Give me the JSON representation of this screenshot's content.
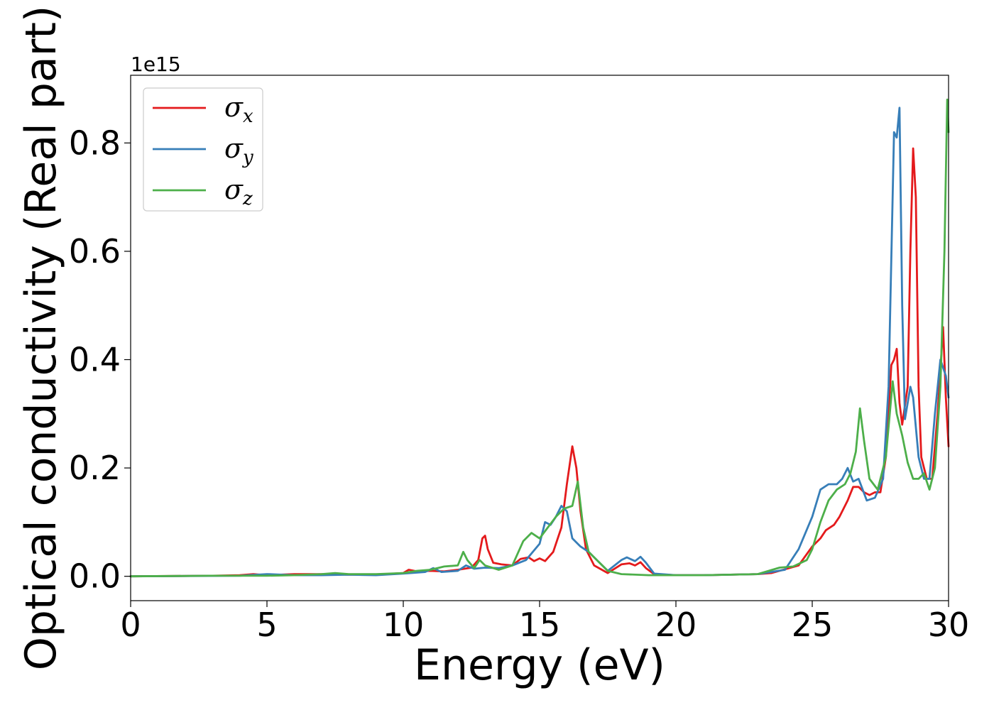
{
  "chart_data": {
    "type": "line",
    "xlabel": "Energy (eV)",
    "ylabel": "Optical conductivity (Real part)",
    "y_offset_text": "1e15",
    "xlim": [
      0,
      30
    ],
    "ylim": [
      -0.045,
      0.925
    ],
    "x_ticks": [
      0,
      5,
      10,
      15,
      20,
      25,
      30
    ],
    "x_tick_labels": [
      "0",
      "5",
      "10",
      "15",
      "20",
      "25",
      "30"
    ],
    "y_ticks": [
      0.0,
      0.2,
      0.4,
      0.6,
      0.8
    ],
    "y_tick_labels": [
      "0.0",
      "0.2",
      "0.4",
      "0.6",
      "0.8"
    ],
    "grid": false,
    "legend_position": "top-left",
    "series": [
      {
        "name": "σx",
        "symbol": "σ",
        "subscript": "x",
        "color": "#e41a1c",
        "points": [
          [
            0,
            0
          ],
          [
            3,
            0.001
          ],
          [
            4,
            0.002
          ],
          [
            4.5,
            0.004
          ],
          [
            5,
            0.002
          ],
          [
            6,
            0.004
          ],
          [
            7,
            0.004
          ],
          [
            8,
            0.003
          ],
          [
            9,
            0.003
          ],
          [
            10,
            0.006
          ],
          [
            10.2,
            0.012
          ],
          [
            10.5,
            0.009
          ],
          [
            11,
            0.01
          ],
          [
            11.5,
            0.009
          ],
          [
            12,
            0.012
          ],
          [
            12.5,
            0.016
          ],
          [
            12.75,
            0.03
          ],
          [
            12.9,
            0.07
          ],
          [
            13.0,
            0.075
          ],
          [
            13.1,
            0.05
          ],
          [
            13.3,
            0.025
          ],
          [
            13.6,
            0.022
          ],
          [
            14,
            0.02
          ],
          [
            14.3,
            0.032
          ],
          [
            14.6,
            0.035
          ],
          [
            14.8,
            0.028
          ],
          [
            15,
            0.033
          ],
          [
            15.2,
            0.028
          ],
          [
            15.5,
            0.045
          ],
          [
            15.8,
            0.09
          ],
          [
            16.0,
            0.17
          ],
          [
            16.2,
            0.24
          ],
          [
            16.35,
            0.2
          ],
          [
            16.5,
            0.12
          ],
          [
            16.7,
            0.05
          ],
          [
            17,
            0.02
          ],
          [
            17.5,
            0.006
          ],
          [
            18,
            0.022
          ],
          [
            18.3,
            0.024
          ],
          [
            18.5,
            0.02
          ],
          [
            18.7,
            0.026
          ],
          [
            18.9,
            0.015
          ],
          [
            19.2,
            0.004
          ],
          [
            20,
            0.002
          ],
          [
            21,
            0.002
          ],
          [
            22,
            0.003
          ],
          [
            23,
            0.004
          ],
          [
            23.5,
            0.006
          ],
          [
            24,
            0.013
          ],
          [
            24.5,
            0.02
          ],
          [
            25,
            0.055
          ],
          [
            25.3,
            0.07
          ],
          [
            25.5,
            0.085
          ],
          [
            25.8,
            0.095
          ],
          [
            26,
            0.11
          ],
          [
            26.3,
            0.14
          ],
          [
            26.5,
            0.165
          ],
          [
            26.7,
            0.165
          ],
          [
            26.9,
            0.155
          ],
          [
            27.1,
            0.15
          ],
          [
            27.3,
            0.155
          ],
          [
            27.5,
            0.155
          ],
          [
            27.7,
            0.22
          ],
          [
            27.9,
            0.39
          ],
          [
            28.0,
            0.4
          ],
          [
            28.1,
            0.42
          ],
          [
            28.2,
            0.32
          ],
          [
            28.3,
            0.28
          ],
          [
            28.5,
            0.35
          ],
          [
            28.6,
            0.6
          ],
          [
            28.7,
            0.79
          ],
          [
            28.8,
            0.7
          ],
          [
            28.9,
            0.35
          ],
          [
            29.0,
            0.22
          ],
          [
            29.2,
            0.18
          ],
          [
            29.4,
            0.18
          ],
          [
            29.6,
            0.3
          ],
          [
            29.8,
            0.46
          ],
          [
            29.9,
            0.33
          ],
          [
            30,
            0.24
          ]
        ]
      },
      {
        "name": "σy",
        "symbol": "σ",
        "subscript": "y",
        "color": "#377eb8",
        "points": [
          [
            0,
            0
          ],
          [
            4,
            0.001
          ],
          [
            5,
            0.004
          ],
          [
            6,
            0.002
          ],
          [
            7,
            0.002
          ],
          [
            8,
            0.003
          ],
          [
            9,
            0.002
          ],
          [
            10,
            0.005
          ],
          [
            10.8,
            0.008
          ],
          [
            11.1,
            0.015
          ],
          [
            11.4,
            0.008
          ],
          [
            12,
            0.01
          ],
          [
            12.3,
            0.02
          ],
          [
            12.6,
            0.014
          ],
          [
            13,
            0.016
          ],
          [
            13.5,
            0.015
          ],
          [
            14,
            0.02
          ],
          [
            14.5,
            0.03
          ],
          [
            15.0,
            0.06
          ],
          [
            15.2,
            0.1
          ],
          [
            15.4,
            0.095
          ],
          [
            15.6,
            0.11
          ],
          [
            15.8,
            0.13
          ],
          [
            16.0,
            0.12
          ],
          [
            16.2,
            0.07
          ],
          [
            16.5,
            0.055
          ],
          [
            16.8,
            0.045
          ],
          [
            17,
            0.035
          ],
          [
            17.5,
            0.01
          ],
          [
            18,
            0.03
          ],
          [
            18.2,
            0.035
          ],
          [
            18.5,
            0.028
          ],
          [
            18.7,
            0.036
          ],
          [
            18.9,
            0.025
          ],
          [
            19.2,
            0.005
          ],
          [
            20,
            0.002
          ],
          [
            21,
            0.002
          ],
          [
            22,
            0.003
          ],
          [
            23,
            0.004
          ],
          [
            24,
            0.012
          ],
          [
            24.5,
            0.05
          ],
          [
            25,
            0.11
          ],
          [
            25.3,
            0.16
          ],
          [
            25.6,
            0.17
          ],
          [
            25.9,
            0.17
          ],
          [
            26.1,
            0.18
          ],
          [
            26.3,
            0.2
          ],
          [
            26.5,
            0.175
          ],
          [
            26.7,
            0.18
          ],
          [
            27.0,
            0.14
          ],
          [
            27.3,
            0.145
          ],
          [
            27.6,
            0.18
          ],
          [
            27.8,
            0.35
          ],
          [
            28.0,
            0.82
          ],
          [
            28.1,
            0.81
          ],
          [
            28.2,
            0.865
          ],
          [
            28.3,
            0.5
          ],
          [
            28.4,
            0.29
          ],
          [
            28.6,
            0.35
          ],
          [
            28.7,
            0.33
          ],
          [
            28.9,
            0.22
          ],
          [
            29.1,
            0.18
          ],
          [
            29.3,
            0.18
          ],
          [
            29.5,
            0.3
          ],
          [
            29.7,
            0.4
          ],
          [
            29.9,
            0.37
          ],
          [
            30,
            0.33
          ]
        ]
      },
      {
        "name": "σz",
        "symbol": "σ",
        "subscript": "z",
        "color": "#4daf4a",
        "points": [
          [
            0,
            0
          ],
          [
            3,
            0.001
          ],
          [
            5,
            0.001
          ],
          [
            6,
            0.002
          ],
          [
            7,
            0.004
          ],
          [
            7.5,
            0.006
          ],
          [
            8,
            0.004
          ],
          [
            9,
            0.004
          ],
          [
            10,
            0.006
          ],
          [
            10.5,
            0.01
          ],
          [
            11,
            0.012
          ],
          [
            11.5,
            0.018
          ],
          [
            12,
            0.02
          ],
          [
            12.2,
            0.045
          ],
          [
            12.35,
            0.03
          ],
          [
            12.6,
            0.015
          ],
          [
            12.8,
            0.03
          ],
          [
            13,
            0.02
          ],
          [
            13.5,
            0.012
          ],
          [
            14,
            0.02
          ],
          [
            14.4,
            0.065
          ],
          [
            14.7,
            0.08
          ],
          [
            15,
            0.07
          ],
          [
            15.3,
            0.09
          ],
          [
            15.6,
            0.11
          ],
          [
            15.9,
            0.125
          ],
          [
            16.2,
            0.13
          ],
          [
            16.4,
            0.175
          ],
          [
            16.6,
            0.09
          ],
          [
            16.8,
            0.045
          ],
          [
            17,
            0.035
          ],
          [
            17.5,
            0.01
          ],
          [
            18,
            0.004
          ],
          [
            19,
            0.002
          ],
          [
            20,
            0.002
          ],
          [
            21,
            0.002
          ],
          [
            22,
            0.003
          ],
          [
            23,
            0.004
          ],
          [
            23.8,
            0.016
          ],
          [
            24.3,
            0.018
          ],
          [
            24.8,
            0.03
          ],
          [
            25,
            0.05
          ],
          [
            25.3,
            0.1
          ],
          [
            25.6,
            0.14
          ],
          [
            25.9,
            0.16
          ],
          [
            26.2,
            0.17
          ],
          [
            26.4,
            0.19
          ],
          [
            26.6,
            0.23
          ],
          [
            26.75,
            0.31
          ],
          [
            26.9,
            0.25
          ],
          [
            27.1,
            0.18
          ],
          [
            27.4,
            0.16
          ],
          [
            27.7,
            0.22
          ],
          [
            27.95,
            0.36
          ],
          [
            28.1,
            0.3
          ],
          [
            28.3,
            0.26
          ],
          [
            28.5,
            0.21
          ],
          [
            28.7,
            0.18
          ],
          [
            28.9,
            0.18
          ],
          [
            29.1,
            0.19
          ],
          [
            29.3,
            0.16
          ],
          [
            29.5,
            0.2
          ],
          [
            29.7,
            0.35
          ],
          [
            29.85,
            0.6
          ],
          [
            29.95,
            0.88
          ],
          [
            30,
            0.82
          ]
        ]
      }
    ]
  }
}
